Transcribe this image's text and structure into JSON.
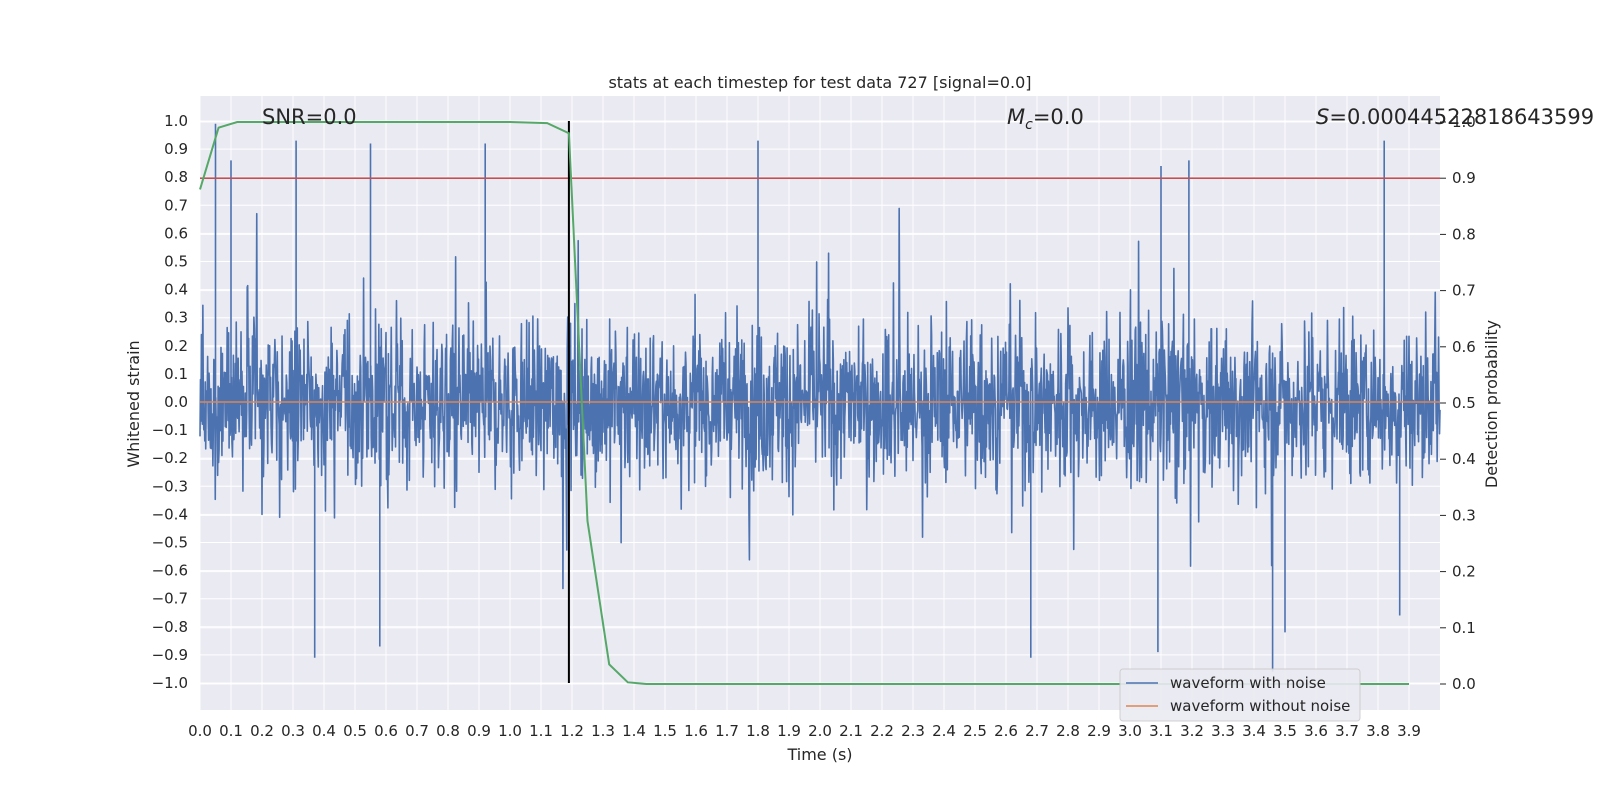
{
  "chart_data": {
    "type": "line",
    "title": "stats at each timestep for test data 727 [signal=0.0]",
    "xlabel": "Time (s)",
    "ylabel": "Whitened strain",
    "y2label": "Detection probability",
    "xlim": [
      0.0,
      4.0
    ],
    "ylim": [
      -1.1,
      1.1
    ],
    "y2lim": [
      -0.05,
      1.0
    ],
    "grid": true,
    "legend_position": "lower-right",
    "x_ticks": [
      "0.0",
      "0.1",
      "0.2",
      "0.3",
      "0.4",
      "0.5",
      "0.6",
      "0.7",
      "0.8",
      "0.9",
      "1.0",
      "1.1",
      "1.2",
      "1.3",
      "1.4",
      "1.5",
      "1.6",
      "1.7",
      "1.8",
      "1.9",
      "2.0",
      "2.1",
      "2.2",
      "2.3",
      "2.4",
      "2.5",
      "2.6",
      "2.7",
      "2.8",
      "2.9",
      "3.0",
      "3.1",
      "3.2",
      "3.3",
      "3.4",
      "3.5",
      "3.6",
      "3.7",
      "3.8",
      "3.9"
    ],
    "y_ticks": [
      "1.0",
      "0.9",
      "0.8",
      "0.7",
      "0.6",
      "0.5",
      "0.4",
      "0.3",
      "0.2",
      "0.1",
      "0.0",
      "−0.1",
      "−0.2",
      "−0.3",
      "−0.4",
      "−0.5",
      "−0.6",
      "−0.7",
      "−0.8",
      "−0.9",
      "−1.0"
    ],
    "y2_ticks": [
      "1.0",
      "0.9",
      "0.8",
      "0.7",
      "0.6",
      "0.5",
      "0.4",
      "0.3",
      "0.2",
      "0.1",
      "0.0"
    ],
    "annotations": {
      "snr": "SNR=0.0",
      "mc_symbol": "M",
      "mc_sub": "c",
      "mc_value": "=0.0",
      "s_symbol": "S",
      "s_value": "=0.00044522818643599"
    },
    "series": [
      {
        "name": "waveform with noise",
        "color": "#4c72b0",
        "kind": "noise",
        "envelope": 0.55,
        "peaks": [
          {
            "x": 0.05,
            "y": 0.99
          },
          {
            "x": 0.1,
            "y": 0.86
          },
          {
            "x": 0.31,
            "y": 0.93
          },
          {
            "x": 0.37,
            "y": -0.91
          },
          {
            "x": 0.55,
            "y": 0.92
          },
          {
            "x": 0.58,
            "y": -0.87
          },
          {
            "x": 0.92,
            "y": 0.92
          },
          {
            "x": 1.8,
            "y": 0.93
          },
          {
            "x": 2.68,
            "y": -0.91
          },
          {
            "x": 3.09,
            "y": -0.89
          },
          {
            "x": 3.1,
            "y": 0.84
          },
          {
            "x": 3.19,
            "y": 0.86
          },
          {
            "x": 3.46,
            "y": -0.96
          },
          {
            "x": 3.5,
            "y": -0.82
          },
          {
            "x": 3.82,
            "y": 0.93
          },
          {
            "x": 3.87,
            "y": -0.76
          }
        ]
      },
      {
        "name": "waveform without noise",
        "color": "#dd8452",
        "x": [
          0.0,
          4.0
        ],
        "y": [
          0.0,
          0.0
        ]
      },
      {
        "name": "",
        "color": "#55a868",
        "axis": "right",
        "x": [
          0.0,
          0.06,
          0.12,
          0.2,
          0.5,
          1.0,
          1.12,
          1.19,
          1.25,
          1.32,
          1.38,
          1.44,
          1.6,
          2.5,
          3.9
        ],
        "y": [
          0.88,
          0.99,
          1.0,
          1.0,
          1.0,
          1.0,
          0.998,
          0.98,
          0.29,
          0.035,
          0.003,
          0.0,
          0.0,
          0.0,
          0.0
        ]
      }
    ],
    "reference_lines": {
      "threshold_y2": 0.9,
      "threshold_color": "#c44e52",
      "vline_x": 1.19,
      "vline_color": "#000000"
    }
  }
}
